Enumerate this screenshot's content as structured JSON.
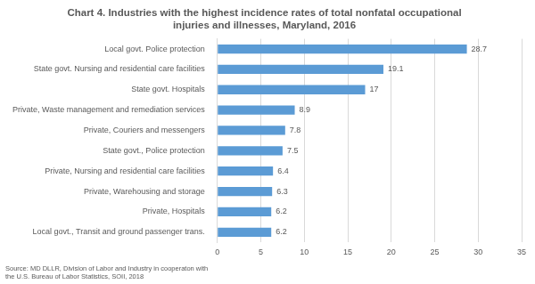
{
  "chart_data": {
    "type": "bar",
    "orientation": "horizontal",
    "title": [
      "Chart 4. Industries with the highest incidence rates of total nonfatal occupational",
      "injuries and illnesses, Maryland, 2016"
    ],
    "source": [
      "Source: MD DLLR, Division of Labor and Industry in cooperaton with",
      "the U.S. Bureau of Labor Statistics, SOII, 2018"
    ],
    "categories": [
      "Local govt. Police protection",
      "State govt. Nursing and residential care facilities",
      "State govt. Hospitals",
      "Private, Waste management and remediation services",
      "Private, Couriers and messengers",
      "State govt., Police protection",
      "Private, Nursing and residential care facilities",
      "Private, Warehousing and storage",
      "Private, Hospitals",
      "Local govt., Transit and ground passenger trans."
    ],
    "values": [
      28.7,
      19.1,
      17,
      8.9,
      7.8,
      7.5,
      6.4,
      6.3,
      6.2,
      6.2
    ],
    "color": "#5b9bd5",
    "xlim": [
      0,
      35
    ],
    "xticks": [
      0,
      5,
      10,
      15,
      20,
      25,
      30,
      35
    ],
    "grid": true,
    "data_labels": true
  }
}
